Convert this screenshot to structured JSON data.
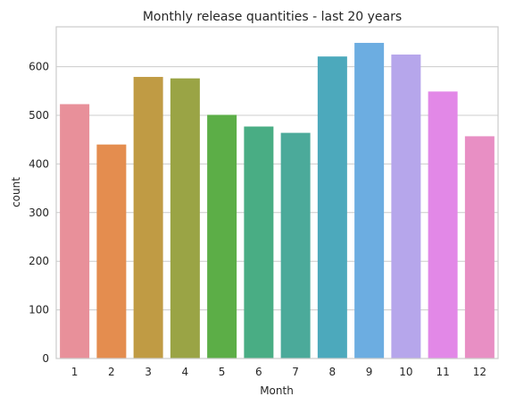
{
  "chart_data": {
    "type": "bar",
    "title": "Monthly release quantities - last 20 years",
    "xlabel": "Month",
    "ylabel": "count",
    "categories": [
      "1",
      "2",
      "3",
      "4",
      "5",
      "6",
      "7",
      "8",
      "9",
      "10",
      "11",
      "12"
    ],
    "values": [
      523,
      440,
      579,
      576,
      501,
      477,
      464,
      621,
      649,
      625,
      549,
      457
    ],
    "ylim": [
      0,
      682
    ],
    "yticks": [
      0,
      100,
      200,
      300,
      400,
      500,
      600
    ],
    "grid": true,
    "colors": [
      "#e8909a",
      "#e48d4f",
      "#c09b44",
      "#9aa445",
      "#5cae47",
      "#49ad84",
      "#4baa9a",
      "#4ca9bc",
      "#6cade1",
      "#b6a6eb",
      "#e288e7",
      "#e88fc4"
    ]
  }
}
